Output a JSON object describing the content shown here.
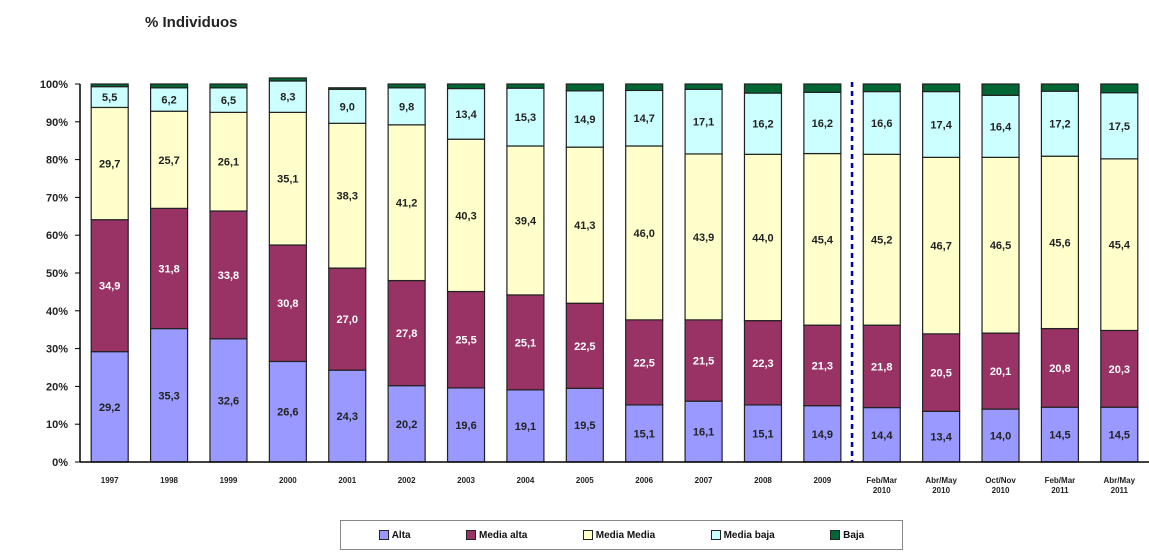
{
  "chart_data": {
    "type": "bar",
    "stacked": true,
    "title": "% Individuos",
    "categories": [
      "1997",
      "1998",
      "1999",
      "2000",
      "2001",
      "2002",
      "2003",
      "2004",
      "2005",
      "2006",
      "2007",
      "2008",
      "2009",
      "Feb/Mar 2010",
      "Abr/May 2010",
      "Oct/Nov 2010",
      "Feb/Mar 2011",
      "Abr/May 2011"
    ],
    "ylim": [
      0,
      100
    ],
    "yticks": [
      "0%",
      "10%",
      "20%",
      "30%",
      "40%",
      "50%",
      "60%",
      "70%",
      "80%",
      "90%",
      "100%"
    ],
    "series": [
      {
        "name": "Alta",
        "color": "#9999ff",
        "values": [
          29.2,
          35.3,
          32.6,
          26.6,
          24.3,
          20.2,
          19.6,
          19.1,
          19.5,
          15.1,
          16.1,
          15.1,
          14.9,
          14.4,
          13.4,
          14.0,
          14.5,
          14.5
        ],
        "labels": [
          "29,2",
          "35,3",
          "32,6",
          "26,6",
          "24,3",
          "20,2",
          "19,6",
          "19,1",
          "19,5",
          "15,1",
          "16,1",
          "15,1",
          "14,9",
          "14,4",
          "13,4",
          "14,0",
          "14,5",
          "14,5"
        ]
      },
      {
        "name": "Media alta",
        "color": "#993366",
        "values": [
          34.9,
          31.8,
          33.8,
          30.8,
          27.0,
          27.8,
          25.5,
          25.1,
          22.5,
          22.5,
          21.5,
          22.3,
          21.3,
          21.8,
          20.5,
          20.1,
          20.8,
          20.3
        ],
        "labels": [
          "34,9",
          "31,8",
          "33,8",
          "30,8",
          "27,0",
          "27,8",
          "25,5",
          "25,1",
          "22,5",
          "22,5",
          "21,5",
          "22,3",
          "21,3",
          "21,8",
          "20,5",
          "20,1",
          "20,8",
          "20,3"
        ]
      },
      {
        "name": "Media Media",
        "color": "#ffffcc",
        "values": [
          29.7,
          25.7,
          26.1,
          35.1,
          38.3,
          41.2,
          40.3,
          39.4,
          41.3,
          46.0,
          43.9,
          44.0,
          45.4,
          45.2,
          46.7,
          46.5,
          45.6,
          45.4
        ],
        "labels": [
          "29,7",
          "25,7",
          "26,1",
          "35,1",
          "38,3",
          "41,2",
          "40,3",
          "39,4",
          "41,3",
          "46,0",
          "43,9",
          "44,0",
          "45,4",
          "45,2",
          "46,7",
          "46,5",
          "45,6",
          "45,4"
        ]
      },
      {
        "name": "Media baja",
        "color": "#ccffff",
        "values": [
          5.5,
          6.2,
          6.5,
          8.3,
          9.0,
          9.8,
          13.4,
          15.3,
          14.9,
          14.7,
          17.1,
          16.2,
          16.2,
          16.6,
          17.4,
          16.4,
          17.2,
          17.5
        ],
        "labels": [
          "5,5",
          "6,2",
          "6,5",
          "8,3",
          "9,0",
          "9,8",
          "13,4",
          "15,3",
          "14,9",
          "14,7",
          "17,1",
          "16,2",
          "16,2",
          "16,6",
          "17,4",
          "16,4",
          "17,2",
          "17,5"
        ]
      },
      {
        "name": "Baja",
        "color": "#006633",
        "values": [
          0.7,
          1.0,
          1.0,
          0.8,
          0.4,
          1.0,
          1.2,
          1.1,
          1.8,
          1.7,
          1.4,
          2.4,
          2.2,
          2.0,
          2.0,
          3.0,
          1.9,
          2.3
        ],
        "labels": [
          "",
          "",
          "",
          "",
          "",
          "",
          "",
          "",
          "",
          "",
          "",
          "",
          "",
          "",
          "",
          "",
          "",
          ""
        ]
      }
    ],
    "separator_after_index": 12,
    "legend_position": "bottom"
  }
}
